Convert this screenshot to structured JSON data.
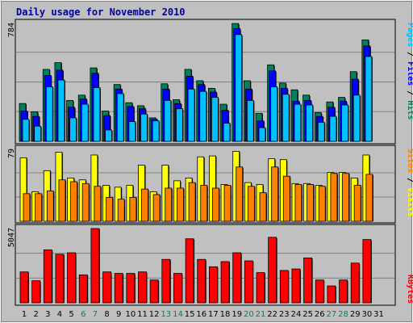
{
  "title": "Daily usage for November 2010",
  "colors": {
    "hits": "#00805C",
    "files": "#0000FF",
    "pages": "#00C0FF",
    "visits": "#FFFF00",
    "sites": "#FF8000",
    "kbytes": "#FF0000",
    "weekday_label": "#000000",
    "weekend_label": "#00805C"
  },
  "chart_data": {
    "type": "bar",
    "x": [
      "1",
      "2",
      "3",
      "4",
      "5",
      "6",
      "7",
      "8",
      "9",
      "10",
      "11",
      "12",
      "13",
      "14",
      "15",
      "16",
      "17",
      "18",
      "19",
      "20",
      "21",
      "22",
      "23",
      "24",
      "25",
      "26",
      "27",
      "28",
      "29",
      "30",
      "31"
    ],
    "weekend_days": [
      "6",
      "7",
      "13",
      "14",
      "20",
      "21",
      "27",
      "28"
    ],
    "panels": [
      {
        "name": "hits-files-pages",
        "axis_max_label": "784",
        "ymax": 784,
        "legend": {
          "pages": "Pages",
          "sep1": " / ",
          "files": "Files",
          "sep2": " / ",
          "hits": "Hits"
        },
        "series": [
          {
            "name": "Hits",
            "values": [
              250,
              195,
              475,
              520,
              270,
              305,
              485,
              200,
              375,
              255,
              235,
              155,
              380,
              275,
              475,
              400,
              350,
              245,
              778,
              400,
              185,
              505,
              385,
              340,
              305,
              190,
              260,
              290,
              460,
              670
            ]
          },
          {
            "name": "Files",
            "values": [
              200,
              165,
              435,
              470,
              225,
              280,
              450,
              170,
              345,
              230,
              215,
              145,
              345,
              250,
              430,
              375,
              325,
              205,
              745,
              345,
              135,
              465,
              350,
              265,
              270,
              165,
              225,
              265,
              410,
              630
            ]
          },
          {
            "name": "Pages",
            "values": [
              145,
              100,
              360,
              405,
              155,
              245,
              355,
              75,
              315,
              130,
              180,
              135,
              270,
              215,
              345,
              330,
              290,
              120,
              705,
              270,
              90,
              360,
              310,
              245,
              240,
              125,
              165,
              240,
              305,
              560
            ]
          }
        ]
      },
      {
        "name": "visits-sites",
        "axis_max_label": "79",
        "ymax": 79,
        "legend": {
          "sites": "Sites",
          "sep": " / ",
          "visits": "Visits"
        },
        "series": [
          {
            "name": "Visits",
            "values": [
              69,
              32,
              55,
              75,
              47,
              45,
              72,
              39,
              37,
              39,
              61,
              32,
              61,
              44,
              47,
              70,
              71,
              40,
              76,
              42,
              40,
              68,
              67,
              41,
              41,
              39,
              53,
              53,
              47,
              72
            ]
          },
          {
            "name": "Sites",
            "values": [
              30,
              30,
              33,
              45,
              43,
              41,
              38,
              26,
              24,
              26,
              35,
              29,
              36,
              36,
              42,
              39,
              36,
              39,
              59,
              38,
              31,
              59,
              49,
              40,
              40,
              38,
              52,
              52,
              39,
              51
            ]
          }
        ]
      },
      {
        "name": "kbytes",
        "axis_max_label": "5047",
        "ymax": 5047,
        "legend": {
          "kbytes": "KBytes"
        },
        "series": [
          {
            "name": "KBytes",
            "values": [
              2100,
              1500,
              3600,
              3300,
              3400,
              1900,
              5047,
              2100,
              2000,
              2000,
              2100,
              1550,
              2950,
              2000,
              4350,
              2950,
              2450,
              2800,
              3400,
              2850,
              2050,
              4450,
              2200,
              2300,
              3050,
              1550,
              1150,
              1550,
              2700,
              4300
            ]
          }
        ]
      }
    ]
  }
}
